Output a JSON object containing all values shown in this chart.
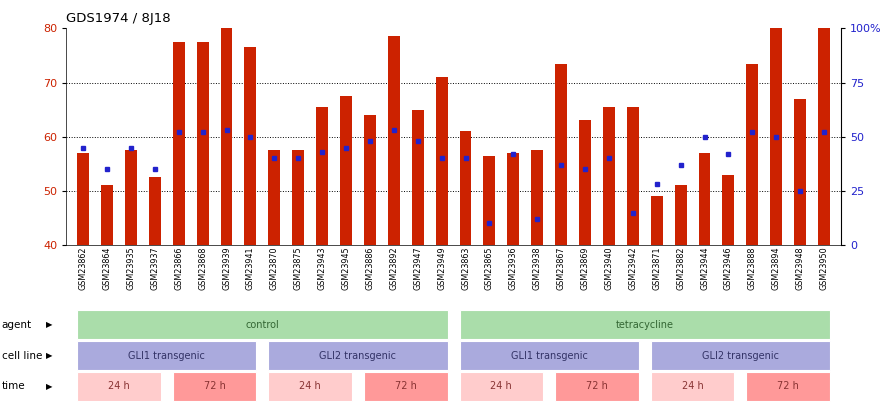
{
  "title": "GDS1974 / 8J18",
  "samples": [
    "GSM23862",
    "GSM23864",
    "GSM23935",
    "GSM23937",
    "GSM23866",
    "GSM23868",
    "GSM23939",
    "GSM23941",
    "GSM23870",
    "GSM23875",
    "GSM23943",
    "GSM23945",
    "GSM23886",
    "GSM23892",
    "GSM23947",
    "GSM23949",
    "GSM23863",
    "GSM23865",
    "GSM23936",
    "GSM23938",
    "GSM23867",
    "GSM23869",
    "GSM23940",
    "GSM23942",
    "GSM23871",
    "GSM23882",
    "GSM23944",
    "GSM23946",
    "GSM23888",
    "GSM23894",
    "GSM23948",
    "GSM23950"
  ],
  "bar_values": [
    57.0,
    51.0,
    57.5,
    52.5,
    77.5,
    77.5,
    80.0,
    76.5,
    57.5,
    57.5,
    65.5,
    67.5,
    64.0,
    78.5,
    65.0,
    71.0,
    61.0,
    56.5,
    57.0,
    57.5,
    73.5,
    63.0,
    65.5,
    65.5,
    49.0,
    51.0,
    57.0,
    53.0,
    73.5,
    80.0,
    67.0,
    80.5
  ],
  "blue_pct": [
    45,
    35,
    45,
    35,
    52,
    52,
    53,
    50,
    40,
    40,
    43,
    45,
    48,
    53,
    48,
    40,
    40,
    10,
    42,
    12,
    37,
    35,
    40,
    15,
    28,
    37,
    50,
    42,
    52,
    50,
    25,
    52
  ],
  "ylim_left": [
    40,
    80
  ],
  "ylim_right": [
    0,
    100
  ],
  "bar_color": "#CC2200",
  "blue_color": "#2222CC",
  "agent_groups": [
    {
      "label": "control",
      "start": 0,
      "end": 16,
      "color": "#AADDAA"
    },
    {
      "label": "tetracycline",
      "start": 16,
      "end": 32,
      "color": "#AADDAA"
    }
  ],
  "cell_line_groups": [
    {
      "label": "GLI1 transgenic",
      "start": 0,
      "end": 8,
      "color": "#AAAADD"
    },
    {
      "label": "GLI2 transgenic",
      "start": 8,
      "end": 16,
      "color": "#AAAADD"
    },
    {
      "label": "GLI1 transgenic",
      "start": 16,
      "end": 24,
      "color": "#AAAADD"
    },
    {
      "label": "GLI2 transgenic",
      "start": 24,
      "end": 32,
      "color": "#AAAADD"
    }
  ],
  "time_groups": [
    {
      "label": "24 h",
      "start": 0,
      "end": 4,
      "color": "#FFCCCC"
    },
    {
      "label": "72 h",
      "start": 4,
      "end": 8,
      "color": "#FF9999"
    },
    {
      "label": "24 h",
      "start": 8,
      "end": 12,
      "color": "#FFCCCC"
    },
    {
      "label": "72 h",
      "start": 12,
      "end": 16,
      "color": "#FF9999"
    },
    {
      "label": "24 h",
      "start": 16,
      "end": 20,
      "color": "#FFCCCC"
    },
    {
      "label": "72 h",
      "start": 20,
      "end": 24,
      "color": "#FF9999"
    },
    {
      "label": "24 h",
      "start": 24,
      "end": 28,
      "color": "#FFCCCC"
    },
    {
      "label": "72 h",
      "start": 28,
      "end": 32,
      "color": "#FF9999"
    }
  ]
}
